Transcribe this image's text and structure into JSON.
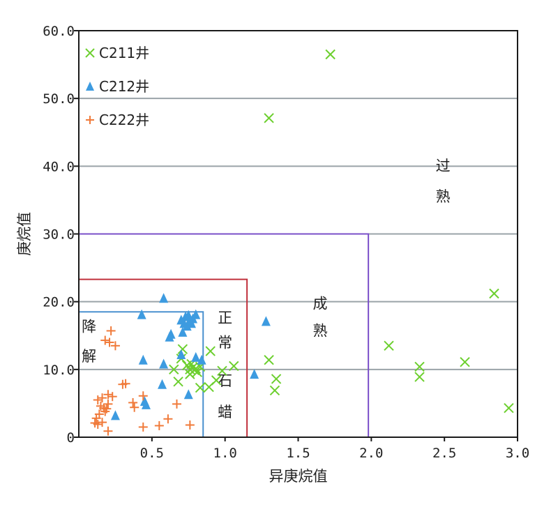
{
  "chart_data": {
    "type": "scatter",
    "title": "",
    "xlabel": "异庚烷值",
    "ylabel": "庚烷值",
    "xlim": [
      0,
      3.0
    ],
    "ylim": [
      0,
      60
    ],
    "x_ticks": [
      {
        "v": 0.5,
        "label": "0.5"
      },
      {
        "v": 1.0,
        "label": "1.0"
      },
      {
        "v": 1.5,
        "label": "1.5"
      },
      {
        "v": 2.0,
        "label": "2.0"
      },
      {
        "v": 2.5,
        "label": "2.5"
      },
      {
        "v": 3.0,
        "label": "3.0"
      }
    ],
    "y_ticks": [
      {
        "v": 0,
        "label": "0"
      },
      {
        "v": 10,
        "label": "10.0"
      },
      {
        "v": 20,
        "label": "20.0"
      },
      {
        "v": 30,
        "label": "30.0"
      },
      {
        "v": 40,
        "label": "40.0"
      },
      {
        "v": 50,
        "label": "50.0"
      },
      {
        "v": 60,
        "label": "60.0"
      }
    ],
    "gridlines_y": [
      10,
      20,
      30,
      40,
      50
    ],
    "grid_color": "#9aa3a8",
    "legend_position": "top-left",
    "regions": [
      {
        "xmax": 0.85,
        "ymax": 18.5,
        "color": "#4a90cf",
        "label": "降解"
      },
      {
        "xmax": 1.15,
        "ymax": 23.3,
        "color": "#c0303c",
        "label": "正常石蜡"
      },
      {
        "xmax": 1.98,
        "ymax": 30.0,
        "color": "#7a4fc9",
        "label": "成熟"
      }
    ],
    "zone_labels": [
      {
        "text": "降",
        "x": 0.07,
        "y": 15.6
      },
      {
        "text": "解",
        "x": 0.07,
        "y": 11.2
      },
      {
        "text": "正",
        "x": 1.0,
        "y": 16.9
      },
      {
        "text": "常",
        "x": 1.0,
        "y": 13.2
      },
      {
        "text": "石",
        "x": 1.0,
        "y": 7.6
      },
      {
        "text": "蜡",
        "x": 1.0,
        "y": 3.0
      },
      {
        "text": "成",
        "x": 1.65,
        "y": 19.0
      },
      {
        "text": "熟",
        "x": 1.65,
        "y": 15.0
      },
      {
        "text": "过",
        "x": 2.49,
        "y": 39.3
      },
      {
        "text": "熟",
        "x": 2.49,
        "y": 34.8
      }
    ],
    "series": [
      {
        "name": "C211井",
        "marker": "x",
        "color": "#6ccf2e",
        "points": [
          [
            1.72,
            56.5
          ],
          [
            1.3,
            47.1
          ],
          [
            2.84,
            21.2
          ],
          [
            2.12,
            13.5
          ],
          [
            2.33,
            10.4
          ],
          [
            2.33,
            8.9
          ],
          [
            2.64,
            11.1
          ],
          [
            2.94,
            4.3
          ],
          [
            1.3,
            11.4
          ],
          [
            1.35,
            8.6
          ],
          [
            1.34,
            6.9
          ],
          [
            1.06,
            10.5
          ],
          [
            0.98,
            9.8
          ],
          [
            0.94,
            8.4
          ],
          [
            0.9,
            12.7
          ],
          [
            0.89,
            7.4
          ],
          [
            0.83,
            7.3
          ],
          [
            0.71,
            13.0
          ],
          [
            0.7,
            11.6
          ],
          [
            0.74,
            10.6
          ],
          [
            0.77,
            10.8
          ],
          [
            0.79,
            9.9
          ],
          [
            0.8,
            10.1
          ],
          [
            0.76,
            9.3
          ],
          [
            0.81,
            9.6
          ],
          [
            0.83,
            10.4
          ],
          [
            0.68,
            8.2
          ],
          [
            0.65,
            10.0
          ],
          [
            0.78,
            10.3
          ],
          [
            0.76,
            10.0
          ]
        ]
      },
      {
        "name": "C212井",
        "marker": "triangle",
        "color": "#3d9be0",
        "points": [
          [
            0.58,
            20.5
          ],
          [
            0.43,
            18.1
          ],
          [
            0.7,
            17.3
          ],
          [
            0.73,
            17.8
          ],
          [
            0.75,
            18.0
          ],
          [
            0.78,
            17.5
          ],
          [
            0.8,
            18.1
          ],
          [
            0.77,
            16.8
          ],
          [
            0.74,
            16.4
          ],
          [
            0.71,
            15.5
          ],
          [
            0.63,
            15.2
          ],
          [
            0.62,
            14.8
          ],
          [
            0.7,
            12.2
          ],
          [
            0.8,
            11.8
          ],
          [
            0.84,
            11.4
          ],
          [
            0.44,
            11.4
          ],
          [
            0.58,
            10.8
          ],
          [
            0.57,
            7.8
          ],
          [
            0.75,
            6.3
          ],
          [
            0.45,
            5.3
          ],
          [
            0.46,
            4.8
          ],
          [
            0.25,
            3.2
          ],
          [
            1.28,
            17.1
          ],
          [
            1.2,
            9.3
          ],
          [
            0.72,
            16.8
          ],
          [
            0.76,
            17.2
          ]
        ]
      },
      {
        "name": "C222井",
        "marker": "plus",
        "color": "#f07a3a",
        "points": [
          [
            0.22,
            15.7
          ],
          [
            0.18,
            14.3
          ],
          [
            0.21,
            14.0
          ],
          [
            0.25,
            13.5
          ],
          [
            0.3,
            7.8
          ],
          [
            0.32,
            7.9
          ],
          [
            0.13,
            5.5
          ],
          [
            0.16,
            5.8
          ],
          [
            0.2,
            6.3
          ],
          [
            0.23,
            6.0
          ],
          [
            0.15,
            4.6
          ],
          [
            0.17,
            4.3
          ],
          [
            0.19,
            4.2
          ],
          [
            0.2,
            4.9
          ],
          [
            0.14,
            3.4
          ],
          [
            0.18,
            3.8
          ],
          [
            0.12,
            2.8
          ],
          [
            0.11,
            2.1
          ],
          [
            0.13,
            1.9
          ],
          [
            0.16,
            2.2
          ],
          [
            0.37,
            5.1
          ],
          [
            0.38,
            4.4
          ],
          [
            0.44,
            6.1
          ],
          [
            0.44,
            1.5
          ],
          [
            0.55,
            1.7
          ],
          [
            0.61,
            2.7
          ],
          [
            0.67,
            4.9
          ],
          [
            0.76,
            1.8
          ],
          [
            0.2,
            0.9
          ]
        ]
      }
    ]
  }
}
